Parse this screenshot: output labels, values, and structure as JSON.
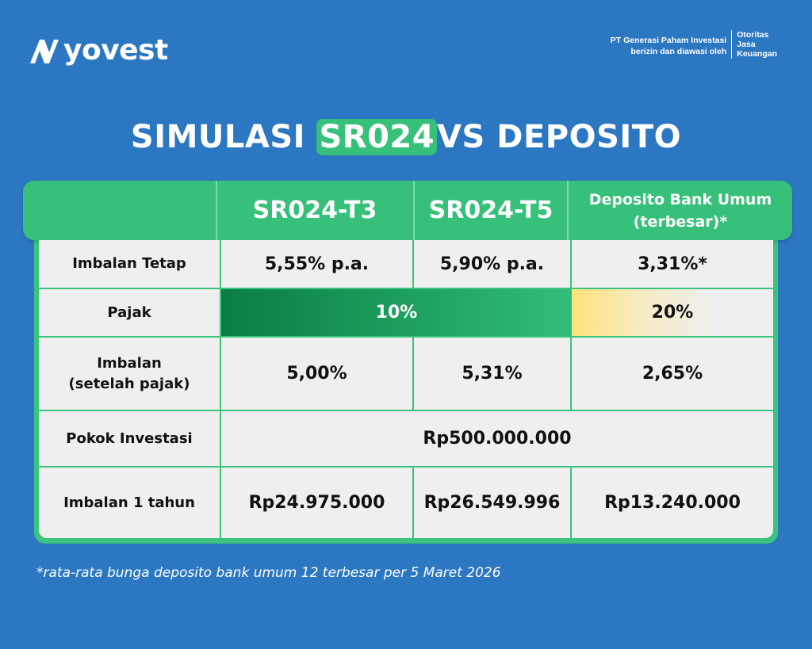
{
  "brand": {
    "name": "yovest",
    "logo_icon": "nyovest-n-mark"
  },
  "regulator": {
    "line1": "PT Generasi Paham Investasi",
    "line2": "berizin dan diawasi oleh",
    "ojk_line1": "Otoritas",
    "ojk_line2": "Jasa",
    "ojk_line3": "Keuangan"
  },
  "title": {
    "before": "SIMULASI ",
    "highlight": "SR024",
    "after": "VS DEPOSITO"
  },
  "colors": {
    "background": "#2b77c2",
    "accent_green": "#36c07a",
    "dark_green": "#0a7d45",
    "yellow": "#ffe27a"
  },
  "table": {
    "headers": [
      "SR024-T3",
      "SR024-T5",
      "Deposito Bank Umum (terbesar)*"
    ],
    "header_dep_line1": "Deposito Bank Umum",
    "header_dep_line2": "(terbesar)*",
    "rows": {
      "imbalan_tetap": {
        "label": "Imbalan Tetap",
        "t3": "5,55% p.a.",
        "t5": "5,90% p.a.",
        "dep": "3,31%*"
      },
      "pajak": {
        "label": "Pajak",
        "sbn": "10%",
        "dep": "20%"
      },
      "imbalan_net": {
        "label_line1": "Imbalan",
        "label_line2": "(setelah pajak)",
        "t3": "5,00%",
        "t5": "5,31%",
        "dep": "2,65%"
      },
      "pokok": {
        "label": "Pokok Investasi",
        "value": "Rp500.000.000"
      },
      "imbalan_tahun": {
        "label": "Imbalan 1 tahun",
        "t3": "Rp24.975.000",
        "t5": "Rp26.549.996",
        "dep": "Rp13.240.000"
      }
    }
  },
  "footnote": "*rata-rata bunga deposito bank umum 12 terbesar per 5 Maret 2026"
}
